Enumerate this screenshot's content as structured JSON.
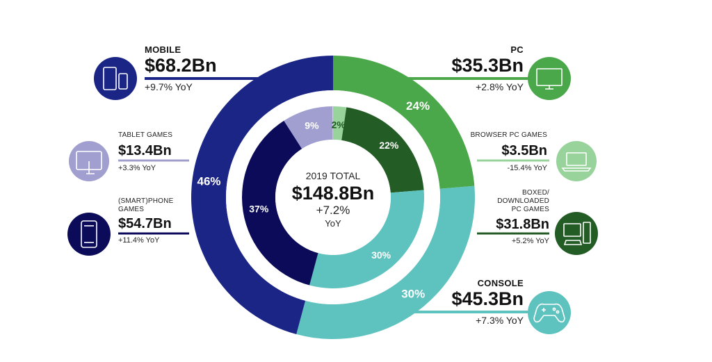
{
  "colors": {
    "mobile": "#1b2586",
    "tablet": "#a09fcf",
    "phone": "#0b0b59",
    "pc": "#4aa84a",
    "browser": "#97d39b",
    "boxed": "#245c26",
    "console": "#5ec3bf"
  },
  "center": {
    "title": "2019 TOTAL",
    "value": "$148.8Bn",
    "yoy": "+7.2%",
    "yoy_unit": "YoY"
  },
  "chart_data": {
    "type": "pie",
    "total": 148.8,
    "outer": [
      {
        "key": "pc",
        "value": 35.3,
        "percent_label": "24%"
      },
      {
        "key": "console",
        "value": 45.3,
        "percent_label": "30%"
      },
      {
        "key": "mobile",
        "value": 68.2,
        "percent_label": "46%"
      }
    ],
    "inner": [
      {
        "key": "browser",
        "value": 3.5,
        "percent_label": "2%"
      },
      {
        "key": "boxed",
        "value": 31.8,
        "percent_label": "22%"
      },
      {
        "key": "console",
        "value": 45.3,
        "percent_label": "30%"
      },
      {
        "key": "phone",
        "value": 54.7,
        "percent_label": "37%"
      },
      {
        "key": "tablet",
        "value": 13.4,
        "percent_label": "9%"
      }
    ]
  },
  "categories": {
    "mobile": {
      "title": "MOBILE",
      "value": "$68.2Bn",
      "yoy": "+9.7% YoY",
      "icon": "mobile-devices-icon"
    },
    "pc": {
      "title": "PC",
      "value": "$35.3Bn",
      "yoy": "+2.8% YoY",
      "icon": "monitor-icon"
    },
    "console": {
      "title": "CONSOLE",
      "value": "$45.3Bn",
      "yoy": "+7.3% YoY",
      "icon": "gamepad-icon"
    },
    "tablet": {
      "title": "TABLET GAMES",
      "value": "$13.4Bn",
      "yoy": "+3.3% YoY",
      "icon": "tablet-icon"
    },
    "phone": {
      "title": "(SMART)PHONE GAMES",
      "value": "$54.7Bn",
      "yoy": "+11.4% YoY",
      "icon": "smartphone-icon"
    },
    "browser": {
      "title": "BROWSER PC GAMES",
      "value": "$3.5Bn",
      "yoy": "-15.4% YoY",
      "icon": "laptop-icon"
    },
    "boxed": {
      "title": "BOXED/ DOWNLOADED PC GAMES",
      "value": "$31.8Bn",
      "yoy": "+5.2% YoY",
      "icon": "desktop-computer-icon"
    }
  }
}
